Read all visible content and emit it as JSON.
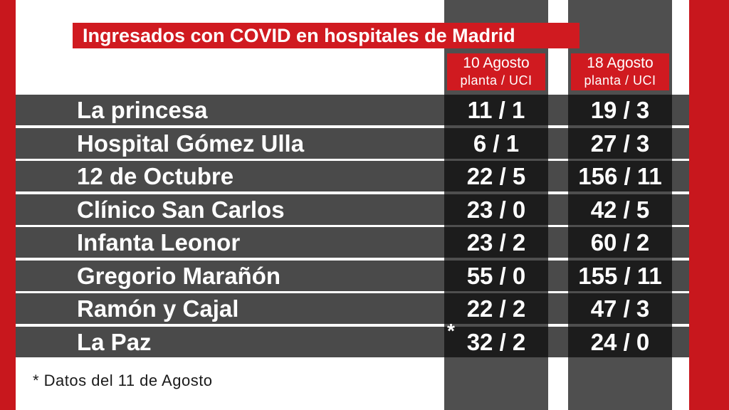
{
  "chart_data": {
    "type": "table",
    "title": "Ingresados con COVID en hospitales de Madrid",
    "columns": [
      {
        "date": "10 Agosto",
        "sub": "planta / UCI"
      },
      {
        "date": "18 Agosto",
        "sub": "planta / UCI"
      }
    ],
    "rows": [
      {
        "name": "La princesa",
        "v1": "11 / 1",
        "v2": "19 / 3",
        "mark": ""
      },
      {
        "name": "Hospital Gómez Ulla",
        "v1": "6 / 1",
        "v2": "27 / 3",
        "mark": ""
      },
      {
        "name": "12 de Octubre",
        "v1": "22 / 5",
        "v2": "156 / 11",
        "mark": ""
      },
      {
        "name": "Clínico San Carlos",
        "v1": "23 / 0",
        "v2": "42 / 5",
        "mark": ""
      },
      {
        "name": "Infanta Leonor",
        "v1": "23 / 2",
        "v2": "60 / 2",
        "mark": ""
      },
      {
        "name": "Gregorio Marañón",
        "v1": "55 / 0",
        "v2": "155 / 11",
        "mark": ""
      },
      {
        "name": "Ramón y Cajal",
        "v1": "22 / 2",
        "v2": "47 / 3",
        "mark": ""
      },
      {
        "name": "La Paz",
        "v1": "32 / 2",
        "v2": "24 / 0",
        "mark": "*"
      }
    ],
    "footnote": "* Datos del 11 de Agosto"
  },
  "colors": {
    "frame_red": "#c8171d",
    "label_red": "#d01a20",
    "row_gray": "#4a4a4a",
    "cell_dark": "#1c1c1c"
  }
}
